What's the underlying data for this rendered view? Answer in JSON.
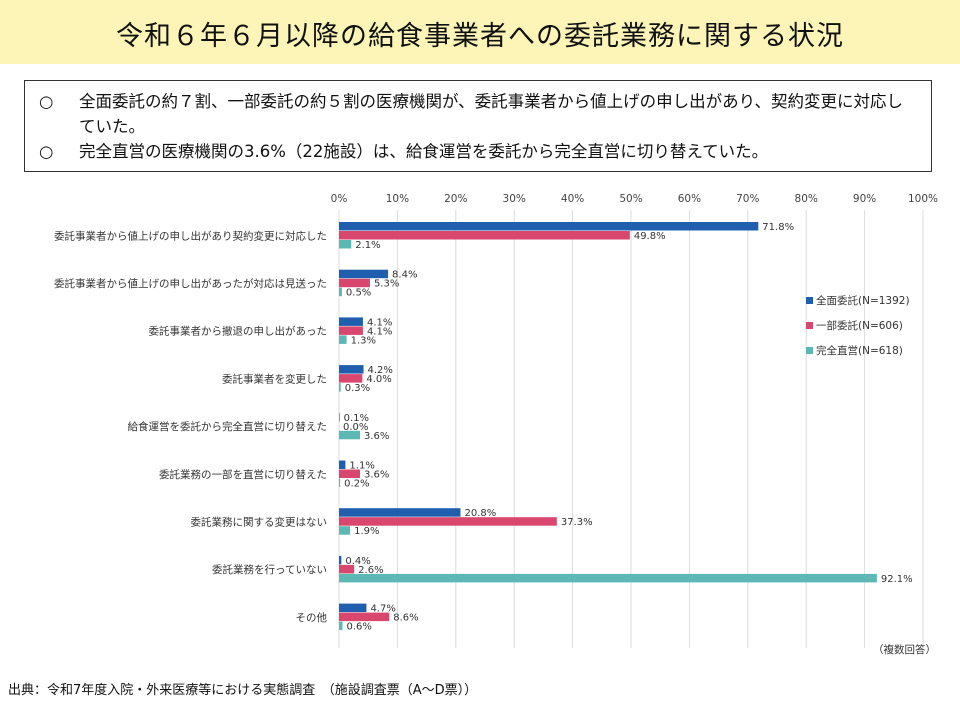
{
  "title": "令和６年６月以降の給食事業者への委託業務に関する状況",
  "summary": [
    {
      "mark": "○",
      "text": "全面委託の約７割、一部委託の約５割の医療機関が、委託事業者から値上げの申し出があり、契約変更に対応していた。"
    },
    {
      "mark": "○",
      "text": "完全直営の医療機関の3.6%（22施設）は、給食運営を委託から完全直営に切り替えていた。"
    }
  ],
  "source": "出典：令和7年度入院・外来医療等における実態調査　（施設調査票（A～D票））",
  "chart_data": {
    "type": "bar",
    "orientation": "horizontal",
    "categories": [
      "委託事業者から値上げの申し出があり契約変更に対応した",
      "委託事業者から値上げの申し出があったが対応は見送った",
      "委託事業者から撤退の申し出があった",
      "委託事業者を変更した",
      "給食運営を委託から完全直営に切り替えた",
      "委託業務の一部を直営に切り替えた",
      "委託業務に関する変更はない",
      "委託業務を行っていない",
      "その他"
    ],
    "series": [
      {
        "name": "全面委託(N=1392)",
        "color": "#1f5fae",
        "values": [
          71.8,
          8.4,
          4.1,
          4.2,
          0.1,
          1.1,
          20.8,
          0.4,
          4.7
        ]
      },
      {
        "name": "一部委託(N=606)",
        "color": "#d9466e",
        "values": [
          49.8,
          5.3,
          4.1,
          4.0,
          0.0,
          3.6,
          37.3,
          2.6,
          8.6
        ]
      },
      {
        "name": "完全直営(N=618)",
        "color": "#5bb8b4",
        "values": [
          2.1,
          0.5,
          1.3,
          0.3,
          3.6,
          0.2,
          1.9,
          92.1,
          0.6
        ]
      }
    ],
    "xlim": [
      0,
      100
    ],
    "xticks": [
      "0%",
      "10%",
      "20%",
      "30%",
      "40%",
      "50%",
      "60%",
      "70%",
      "80%",
      "90%",
      "100%"
    ],
    "value_suffix": "%",
    "grid": true,
    "legend_position": "right",
    "note": "（複数回答）"
  }
}
